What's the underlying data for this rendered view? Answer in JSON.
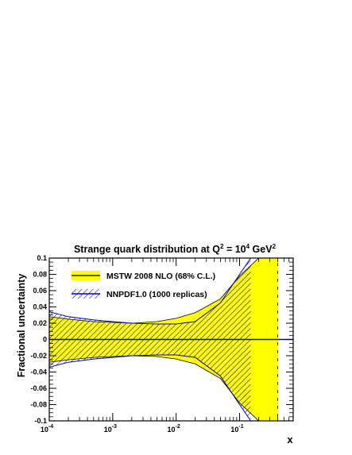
{
  "chart_data": {
    "type": "area",
    "title_parts": {
      "prefix": "Strange quark distribution at Q",
      "sup1": "2",
      "mid": " = 10",
      "sup2": "4",
      "unit": " GeV",
      "sup3": "2"
    },
    "xlabel": "x",
    "ylabel": "Fractional uncertainty",
    "x_scale": "log",
    "xlim": [
      0.0001,
      0.7
    ],
    "ylim": [
      -0.1,
      0.1
    ],
    "x_ticks": [
      {
        "base": "10",
        "exp": "-4"
      },
      {
        "base": "10",
        "exp": "-3"
      },
      {
        "base": "10",
        "exp": "-2"
      },
      {
        "base": "10",
        "exp": "-1"
      }
    ],
    "y_ticks": [
      "-0.1",
      "-0.08",
      "-0.06",
      "-0.04",
      "-0.02",
      "0",
      "0.02",
      "0.04",
      "0.06",
      "0.08",
      "0.1"
    ],
    "legend_position": "top-left",
    "series": [
      {
        "name": "MSTW 2008 NLO (68% C.L.)",
        "style": "filled band",
        "fill_color": "#ffff00",
        "line_color": "#000000",
        "x": [
          0.0001,
          0.0002,
          0.0005,
          0.001,
          0.002,
          0.005,
          0.01,
          0.02,
          0.05,
          0.1,
          0.2,
          0.4
        ],
        "upper": [
          0.028,
          0.025,
          0.022,
          0.021,
          0.02,
          0.022,
          0.026,
          0.033,
          0.05,
          0.078,
          0.1,
          0.1
        ],
        "lower": [
          -0.028,
          -0.025,
          -0.022,
          -0.021,
          -0.02,
          -0.021,
          -0.024,
          -0.03,
          -0.048,
          -0.078,
          -0.1,
          -0.1
        ]
      },
      {
        "name": "NNPDF1.0 (1000 replicas)",
        "style": "hatched band",
        "line_color": "#0000cc",
        "hatch_color": "#2222aa",
        "x": [
          0.0001,
          0.0002,
          0.0005,
          0.001,
          0.002,
          0.005,
          0.01,
          0.02,
          0.05,
          0.1,
          0.15
        ],
        "upper": [
          0.034,
          0.028,
          0.024,
          0.022,
          0.02,
          0.019,
          0.019,
          0.022,
          0.045,
          0.08,
          0.1
        ],
        "lower": [
          -0.034,
          -0.028,
          -0.024,
          -0.022,
          -0.02,
          -0.019,
          -0.019,
          -0.022,
          -0.045,
          -0.08,
          -0.1
        ]
      }
    ],
    "annotations": [
      {
        "type": "vertical-dashed-line",
        "x": 0.4,
        "color": "#ffff00"
      },
      {
        "type": "horizontal-line",
        "y": 0,
        "color": "#0000cc"
      }
    ]
  }
}
